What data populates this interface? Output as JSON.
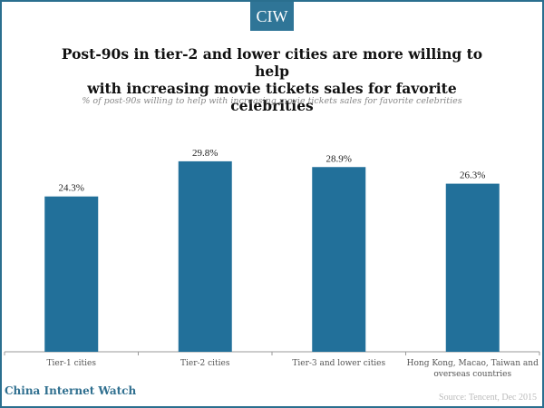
{
  "logo": "CIW",
  "title_line1": "Post-90s in tier-2 and lower cities are more willing to help",
  "title_line2": "with increasing movie tickets sales for favorite celebrities",
  "footer": {
    "brand": "China Internet Watch",
    "source": "Source: Tencent, Dec 2015"
  },
  "colors": {
    "bar": "#22709a",
    "frame": "#2a6f8f",
    "axis": "#999999"
  },
  "chart_data": {
    "type": "bar",
    "title": "Post-90s in tier-2 and lower cities are more willing to help with increasing movie tickets sales for favorite celebrities",
    "subtitle": "% of post-90s willing to help with increasing movie tickets sales for favorite celebrities",
    "categories": [
      "Tier-1 cities",
      "Tier-2 cities",
      "Tier-3 and lower cities",
      "Hong Kong, Macao, Taiwan and overseas countries"
    ],
    "category_lines": [
      [
        "Tier-1 cities"
      ],
      [
        "Tier-2 cities"
      ],
      [
        "Tier-3 and lower cities"
      ],
      [
        "Hong Kong, Macao, Taiwan and",
        "overseas countries"
      ]
    ],
    "values": [
      24.3,
      29.8,
      28.9,
      26.3
    ],
    "labels": [
      "24.3%",
      "29.8%",
      "28.9%",
      "26.3%"
    ],
    "xlabel": "",
    "ylabel": "",
    "ylim": [
      0,
      30
    ],
    "grid": false,
    "legend": "none"
  }
}
